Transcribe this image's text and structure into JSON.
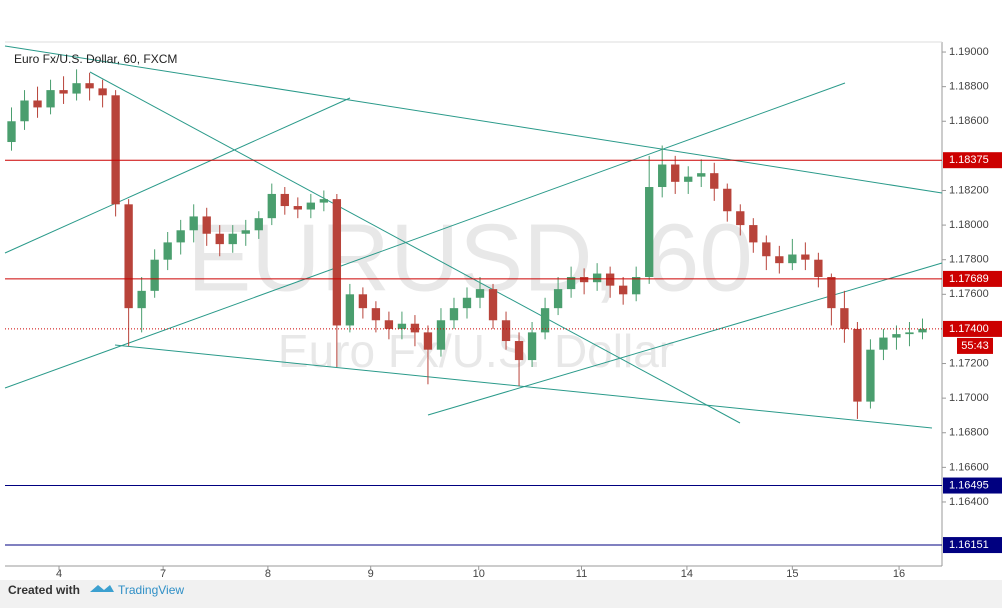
{
  "chart_data": {
    "type": "candlestick",
    "title": "Euro Fx/U.S. Dollar, 60, FXCM",
    "watermark": "EURUSD, 60",
    "watermark_sub": "Euro Fx/U.S. Dollar",
    "color_up": "#4a9e6e",
    "color_down": "#b8433a",
    "candles": [
      [
        1.1848,
        1.1868,
        1.1843,
        1.186
      ],
      [
        1.186,
        1.1878,
        1.1855,
        1.1872
      ],
      [
        1.1872,
        1.188,
        1.1862,
        1.1868
      ],
      [
        1.1868,
        1.1884,
        1.1864,
        1.1878
      ],
      [
        1.1878,
        1.1886,
        1.187,
        1.1876
      ],
      [
        1.1876,
        1.189,
        1.1872,
        1.1882
      ],
      [
        1.1882,
        1.1888,
        1.1872,
        1.1879
      ],
      [
        1.1879,
        1.1884,
        1.1868,
        1.1875
      ],
      [
        1.1875,
        1.1878,
        1.1805,
        1.1812
      ],
      [
        1.1812,
        1.1815,
        1.173,
        1.1752
      ],
      [
        1.1752,
        1.177,
        1.1738,
        1.1762
      ],
      [
        1.1762,
        1.1786,
        1.1758,
        1.178
      ],
      [
        1.178,
        1.1796,
        1.1774,
        1.179
      ],
      [
        1.179,
        1.1803,
        1.1783,
        1.1797
      ],
      [
        1.1797,
        1.1812,
        1.179,
        1.1805
      ],
      [
        1.1805,
        1.181,
        1.1788,
        1.1795
      ],
      [
        1.1795,
        1.18,
        1.1782,
        1.1789
      ],
      [
        1.1789,
        1.18,
        1.1784,
        1.1795
      ],
      [
        1.1795,
        1.1803,
        1.1788,
        1.1797
      ],
      [
        1.1797,
        1.1808,
        1.1792,
        1.1804
      ],
      [
        1.1804,
        1.1824,
        1.18,
        1.1818
      ],
      [
        1.1818,
        1.1822,
        1.1806,
        1.1811
      ],
      [
        1.1811,
        1.1816,
        1.1804,
        1.1809
      ],
      [
        1.1809,
        1.1818,
        1.1804,
        1.1813
      ],
      [
        1.1813,
        1.182,
        1.1808,
        1.1815
      ],
      [
        1.1815,
        1.1818,
        1.1718,
        1.1742
      ],
      [
        1.1742,
        1.1766,
        1.1738,
        1.176
      ],
      [
        1.176,
        1.1764,
        1.1746,
        1.1752
      ],
      [
        1.1752,
        1.1756,
        1.1738,
        1.1745
      ],
      [
        1.1745,
        1.175,
        1.1734,
        1.174
      ],
      [
        1.174,
        1.175,
        1.1734,
        1.1743
      ],
      [
        1.1743,
        1.1748,
        1.173,
        1.1738
      ],
      [
        1.1738,
        1.1742,
        1.1708,
        1.1728
      ],
      [
        1.1728,
        1.1752,
        1.1724,
        1.1745
      ],
      [
        1.1745,
        1.1758,
        1.174,
        1.1752
      ],
      [
        1.1752,
        1.1764,
        1.1746,
        1.1758
      ],
      [
        1.1758,
        1.177,
        1.1752,
        1.1763
      ],
      [
        1.1763,
        1.1766,
        1.174,
        1.1745
      ],
      [
        1.1745,
        1.175,
        1.1728,
        1.1733
      ],
      [
        1.1733,
        1.1738,
        1.1707,
        1.1722
      ],
      [
        1.1722,
        1.1744,
        1.1718,
        1.1738
      ],
      [
        1.1738,
        1.1758,
        1.1734,
        1.1752
      ],
      [
        1.1752,
        1.177,
        1.1748,
        1.1763
      ],
      [
        1.1763,
        1.1776,
        1.1758,
        1.177
      ],
      [
        1.177,
        1.1775,
        1.176,
        1.1767
      ],
      [
        1.1767,
        1.1778,
        1.1762,
        1.1772
      ],
      [
        1.1772,
        1.1776,
        1.1758,
        1.1765
      ],
      [
        1.1765,
        1.177,
        1.1754,
        1.176
      ],
      [
        1.176,
        1.1776,
        1.1756,
        1.177
      ],
      [
        1.177,
        1.184,
        1.1766,
        1.1822
      ],
      [
        1.1822,
        1.1846,
        1.1816,
        1.1835
      ],
      [
        1.1835,
        1.184,
        1.1818,
        1.1825
      ],
      [
        1.1825,
        1.1834,
        1.1818,
        1.1828
      ],
      [
        1.1828,
        1.1838,
        1.1822,
        1.183
      ],
      [
        1.183,
        1.1836,
        1.1814,
        1.1821
      ],
      [
        1.1821,
        1.1824,
        1.1802,
        1.1808
      ],
      [
        1.1808,
        1.1812,
        1.1794,
        1.18
      ],
      [
        1.18,
        1.1804,
        1.1784,
        1.179
      ],
      [
        1.179,
        1.1794,
        1.1774,
        1.1782
      ],
      [
        1.1782,
        1.1788,
        1.1772,
        1.1778
      ],
      [
        1.1778,
        1.1792,
        1.1774,
        1.1783
      ],
      [
        1.1783,
        1.179,
        1.1774,
        1.178
      ],
      [
        1.178,
        1.1784,
        1.1764,
        1.177
      ],
      [
        1.177,
        1.1772,
        1.1742,
        1.1752
      ],
      [
        1.1752,
        1.1762,
        1.1732,
        1.174
      ],
      [
        1.174,
        1.1744,
        1.1688,
        1.1698
      ],
      [
        1.1698,
        1.1734,
        1.1694,
        1.1728
      ],
      [
        1.1728,
        1.174,
        1.1722,
        1.1735
      ],
      [
        1.1735,
        1.1742,
        1.1728,
        1.1737
      ],
      [
        1.1737,
        1.1744,
        1.173,
        1.1738
      ],
      [
        1.1738,
        1.1746,
        1.1734,
        1.174
      ]
    ],
    "xlim": [
      0,
      72
    ],
    "xticks": [
      {
        "value": 4.15,
        "label": "4"
      },
      {
        "value": 12.15,
        "label": "7"
      },
      {
        "value": 20.2,
        "label": "8"
      },
      {
        "value": 28.1,
        "label": "9"
      },
      {
        "value": 36.4,
        "label": "10"
      },
      {
        "value": 44.3,
        "label": "11"
      },
      {
        "value": 52.4,
        "label": "14"
      },
      {
        "value": 60.5,
        "label": "15"
      },
      {
        "value": 68.7,
        "label": "16"
      }
    ],
    "ylim": [
      1.1603,
      1.19058
    ],
    "yticks": [
      {
        "value": 1.19,
        "label": "1.19000"
      },
      {
        "value": 1.188,
        "label": "1.18800"
      },
      {
        "value": 1.186,
        "label": "1.18600"
      },
      {
        "value": 1.182,
        "label": "1.18200"
      },
      {
        "value": 1.18,
        "label": "1.18000"
      },
      {
        "value": 1.178,
        "label": "1.17800"
      },
      {
        "value": 1.176,
        "label": "1.17600"
      },
      {
        "value": 1.172,
        "label": "1.17200"
      },
      {
        "value": 1.17,
        "label": "1.17000"
      },
      {
        "value": 1.168,
        "label": "1.16800"
      },
      {
        "value": 1.166,
        "label": "1.16600"
      },
      {
        "value": 1.164,
        "label": "1.16400"
      }
    ],
    "levels": [
      {
        "value": 1.18375,
        "color": "#cc0000"
      },
      {
        "value": 1.17689,
        "color": "#cc0000"
      },
      {
        "value": 1.16495,
        "color": "#000080"
      },
      {
        "value": 1.16151,
        "color": "#000080"
      }
    ],
    "last": {
      "value": 1.174,
      "label": "1.17400"
    },
    "countdown": "55:43",
    "footer_prefix": "Created with",
    "footer_brand": "TradingView"
  }
}
